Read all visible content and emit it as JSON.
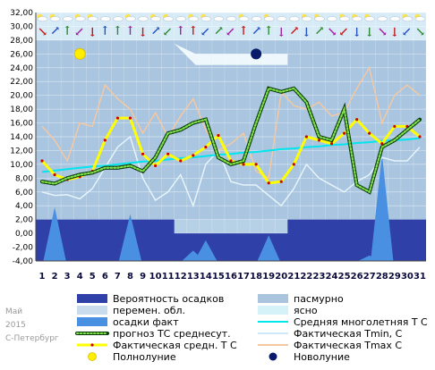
{
  "chart_data": {
    "type": "line",
    "x": [
      1,
      2,
      3,
      4,
      5,
      6,
      7,
      8,
      9,
      10,
      11,
      12,
      13,
      14,
      15,
      16,
      17,
      18,
      19,
      20,
      21,
      22,
      23,
      24,
      25,
      26,
      27,
      28,
      29,
      30,
      31
    ],
    "xticks": [
      "1",
      "2",
      "3",
      "4",
      "5",
      "6",
      "7",
      "8",
      "9",
      "10",
      "11",
      "12",
      "13",
      "14",
      "15",
      "16",
      "17",
      "18",
      "19",
      "20",
      "21",
      "22",
      "23",
      "24",
      "25",
      "26",
      "27",
      "28",
      "29",
      "30",
      "31"
    ],
    "ylim": [
      -4,
      32
    ],
    "yticks": [
      "32,00",
      "30,00",
      "28,00",
      "26,00",
      "24,00",
      "22,00",
      "20,00",
      "18,00",
      "16,00",
      "14,00",
      "12,00",
      "10,00",
      "8,00",
      "6,00",
      "4,00",
      "2,00",
      "0,00",
      "-2,00",
      "-4,00"
    ],
    "grid": true,
    "series": [
      {
        "name": "Фактическая средн. Т С",
        "color": "#ffff00",
        "values": [
          10.5,
          8.5,
          7.8,
          8.2,
          9.0,
          13.5,
          16.7,
          16.7,
          11.5,
          9.8,
          11.5,
          10.5,
          11.3,
          12.5,
          14.2,
          10.5,
          10.0,
          10.0,
          7.3,
          7.5,
          10.0,
          14.0,
          13.5,
          13.0,
          14.5,
          16.5,
          14.5,
          13.0,
          15.5,
          15.5,
          14.0
        ]
      },
      {
        "name": "Фактическая Tmin, С",
        "color": "#cde8f6",
        "values": [
          6.0,
          5.5,
          5.6,
          5.0,
          6.5,
          9.5,
          12.5,
          14.0,
          8.0,
          4.8,
          6.0,
          8.5,
          4.0,
          10.0,
          12.0,
          7.5,
          7.0,
          7.0,
          5.5,
          4.0,
          6.5,
          10.0,
          8.0,
          7.0,
          6.0,
          7.5,
          8.5,
          11.0,
          10.5,
          10.5,
          12.5
        ]
      },
      {
        "name": "Фактическая Tmax С",
        "color": "#f4c8a2",
        "values": [
          15.5,
          13.5,
          10.5,
          16.0,
          15.5,
          21.5,
          19.5,
          18.0,
          14.5,
          17.5,
          14.0,
          17.0,
          19.5,
          15.0,
          12.0,
          13.0,
          14.5,
          9.0,
          8.0,
          20.5,
          18.5,
          18.0,
          19.0,
          17.0,
          17.5,
          21.0,
          24.0,
          16.0,
          20.0,
          21.5,
          20.0
        ]
      },
      {
        "name": "прогноз ТС среднесут.",
        "color": "#2f7a1f",
        "style": "dotted",
        "values": [
          7.5,
          7.2,
          8.0,
          8.5,
          8.8,
          9.5,
          9.5,
          9.8,
          9.0,
          11.0,
          14.5,
          15.0,
          16.0,
          16.5,
          11.0,
          10.0,
          10.5,
          16.0,
          21.0,
          20.5,
          21.0,
          19.0,
          14.0,
          13.5,
          18.0,
          7.0,
          6.0,
          12.5,
          13.5,
          15.0,
          16.5
        ]
      },
      {
        "name": "Средняя многолетняя Т С",
        "color": "#00e5ee",
        "values": [
          8.9,
          9.1,
          9.3,
          9.5,
          9.7,
          9.8,
          10.0,
          10.2,
          10.4,
          10.5,
          10.7,
          10.9,
          11.0,
          11.2,
          11.4,
          11.5,
          11.7,
          11.8,
          12.0,
          12.2,
          12.3,
          12.5,
          12.6,
          12.8,
          12.9,
          13.1,
          13.2,
          13.4,
          13.5,
          13.6,
          13.8
        ]
      },
      {
        "name": "Вероятность осадков",
        "color": "#2f40a8",
        "values": [
          2,
          2,
          2,
          2,
          2,
          2,
          2,
          2,
          2,
          2,
          2,
          0,
          0,
          0,
          0,
          0,
          0,
          0,
          0,
          0,
          2,
          2,
          2,
          2,
          2,
          2,
          2,
          2,
          2,
          2,
          2
        ]
      },
      {
        "name": "осадки факт",
        "color": "#4a90e2",
        "values": [
          -4,
          3.8,
          -4,
          -4,
          -4,
          -4,
          -4,
          2.8,
          -4,
          -4,
          -4,
          -4,
          -2.5,
          -1,
          -4,
          -4,
          -4,
          -4,
          -0.3,
          -4,
          -4,
          -4,
          -4,
          -4,
          -4,
          -4,
          -3.2,
          11.5,
          -4,
          -4,
          -4
        ]
      }
    ],
    "full_moon_day": 4,
    "new_moon_day": 18,
    "legend": [
      {
        "label": "Вероятность осадков",
        "swatch": "bar",
        "color": "#2f40a8"
      },
      {
        "label": "пасмурно",
        "swatch": "bar",
        "color": "#aac4de"
      },
      {
        "label": "перемен. обл.",
        "swatch": "bar",
        "color": "#c9dced"
      },
      {
        "label": "ясно",
        "swatch": "bar",
        "color": "#d6f2f9"
      },
      {
        "label": "осадки факт",
        "swatch": "bar",
        "color": "#4a90e2"
      },
      {
        "label": "Средняя многолетняя Т С",
        "swatch": "line",
        "color": "#00e5ee"
      },
      {
        "label": "прогноз ТС среднесут.",
        "swatch": "dots",
        "color": "#2f7a1f"
      },
      {
        "label": "Фактическая Tmin, С",
        "swatch": "line",
        "color": "#cde8f6"
      },
      {
        "label": "Фактическая средн. Т С",
        "swatch": "yline",
        "color": "#ffff00"
      },
      {
        "label": "Фактическая Tmax С",
        "swatch": "line",
        "color": "#f4c8a2"
      },
      {
        "label": "Полнолуние",
        "swatch": "sun",
        "color": "#ffee00"
      },
      {
        "label": "Новолуние",
        "swatch": "moon",
        "color": "#0a1a6a"
      }
    ],
    "weather_icons": [
      "sun-cloud-icon",
      "sun-cloud-icon",
      "cloud-icon",
      "sun-cloud-icon",
      "sun-cloud-icon",
      "cloud-icon",
      "cloud-icon",
      "sun-cloud-icon",
      "cloud-icon",
      "sun-cloud-icon",
      "sun-cloud-icon",
      "cloud-icon",
      "sun-cloud-icon",
      "sun-cloud-icon",
      "cloud-icon",
      "cloud-icon",
      "sun-cloud-icon",
      "cloud-icon",
      "sun-cloud-icon",
      "cloud-icon",
      "cloud-icon",
      "sun-cloud-icon",
      "sun-cloud-icon",
      "cloud-icon",
      "sun-cloud-icon",
      "sun-cloud-icon",
      "sun-cloud-icon",
      "cloud-icon",
      "cloud-icon",
      "sun-cloud-icon",
      "sun-cloud-icon"
    ],
    "wind_arrows": [
      "down-right",
      "up-right",
      "up",
      "down-left",
      "down",
      "up",
      "up",
      "up",
      "down",
      "up-right",
      "down-left",
      "up",
      "up",
      "down-left",
      "up-right",
      "down-left",
      "up",
      "up-right",
      "up",
      "down",
      "up-right",
      "down",
      "up-right",
      "down-right",
      "down-left",
      "down",
      "down",
      "down-right",
      "down",
      "down-left",
      "down-right"
    ]
  },
  "footer": {
    "month": "Май",
    "year": "2015",
    "city": "С-Петербург"
  }
}
